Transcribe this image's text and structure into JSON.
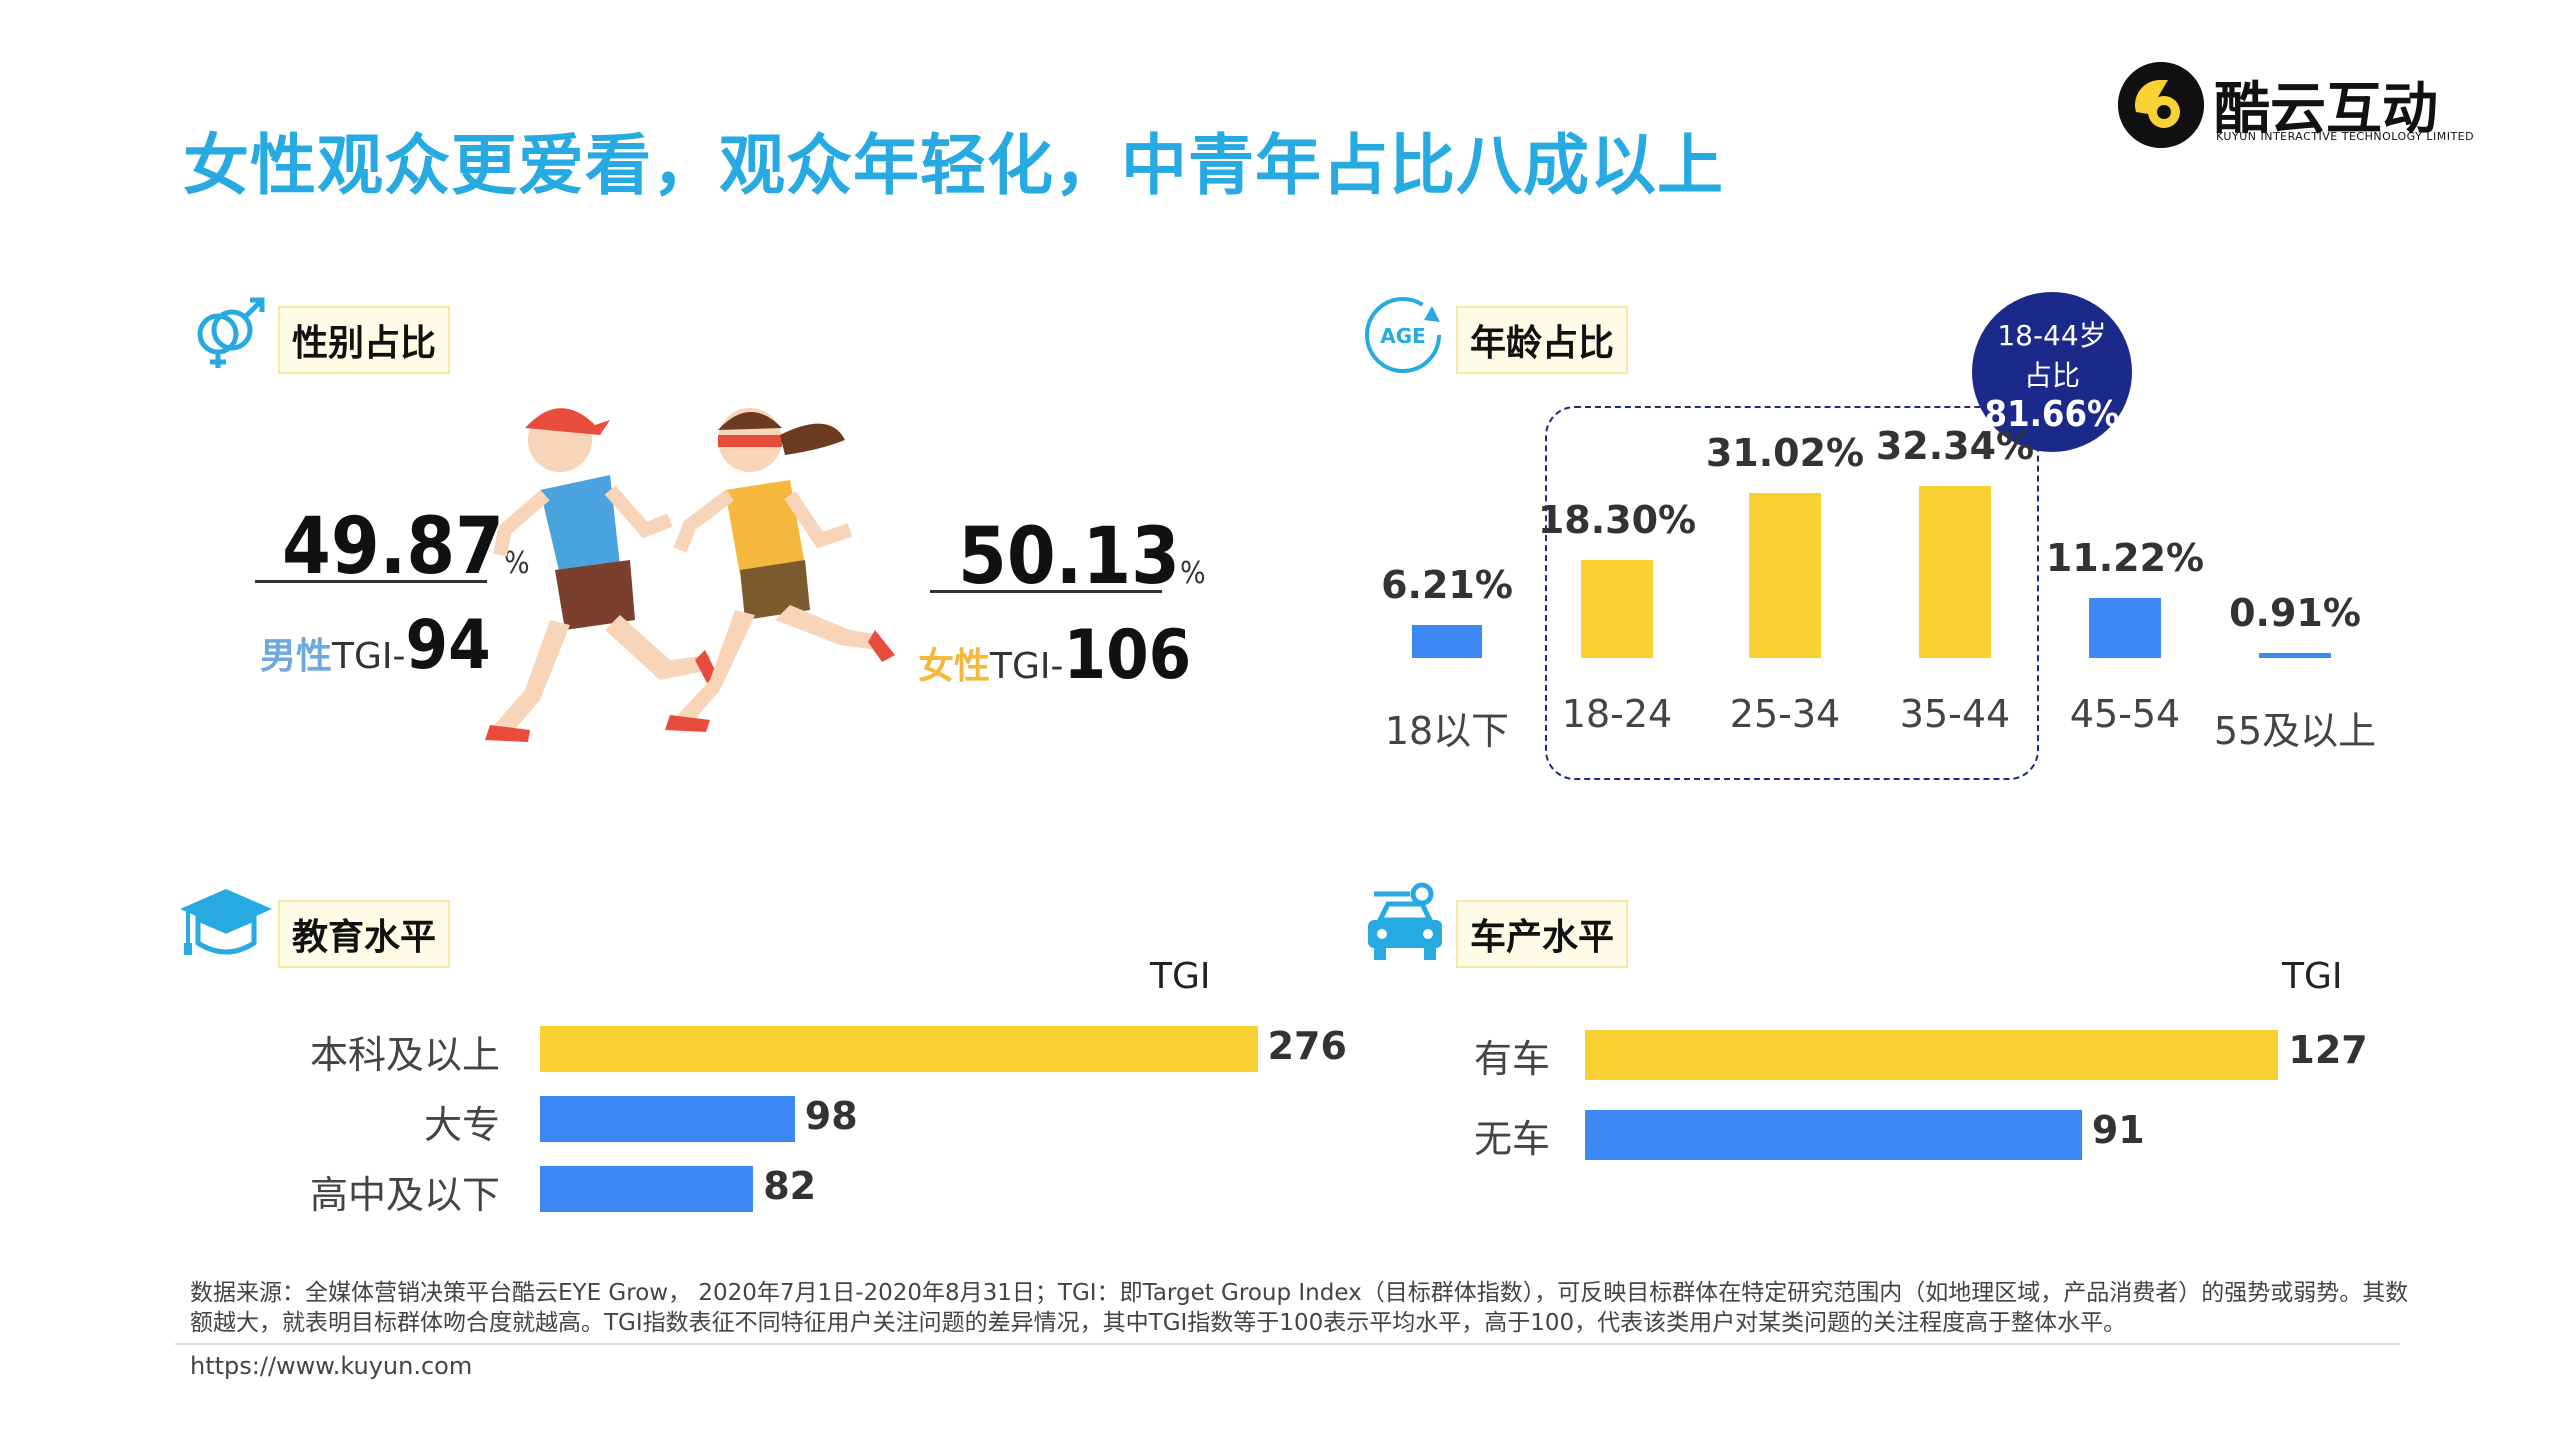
{
  "title": "女性观众更爱看，观众年轻化，中青年占比八成以上",
  "logo": {
    "name": "酷云互动",
    "subtitle": "KUYUN INTERACTIVE TECHNOLOGY LIMITED"
  },
  "sections": {
    "gender": "性别占比",
    "age": "年龄占比",
    "education": "教育水平",
    "car": "车产水平"
  },
  "gender": {
    "male": {
      "pct": "49.87",
      "unit": "%",
      "label": "男性",
      "tgi_prefix": "TGI-",
      "tgi": "94"
    },
    "female": {
      "pct": "50.13",
      "unit": "%",
      "label": "女性",
      "tgi_prefix": "TGI-",
      "tgi": "106"
    }
  },
  "age_badge": {
    "line1": "18-44岁",
    "line2": "占比",
    "value": "81.66%"
  },
  "tgi_label": "TGI",
  "colors": {
    "yellow": "#f9d132",
    "blue": "#3d87f5",
    "title": "#27a9e1",
    "badge": "#1b2a8a",
    "male": "#6fa8dc",
    "female": "#f6b83c"
  },
  "chart_data": [
    {
      "type": "bar",
      "categories": [
        "18以下",
        "18-24",
        "25-34",
        "35-44",
        "45-54",
        "55及以上"
      ],
      "values": [
        6.21,
        18.3,
        31.02,
        32.34,
        11.22,
        0.91
      ],
      "labels": [
        "6.21%",
        "18.30%",
        "31.02%",
        "32.34%",
        "11.22%",
        "0.91%"
      ],
      "highlight": [
        false,
        true,
        true,
        true,
        false,
        false
      ]
    },
    {
      "type": "bar",
      "orientation": "horizontal",
      "categories": [
        "本科及以上",
        "大专",
        "高中及以下"
      ],
      "values": [
        276,
        98,
        82
      ],
      "highlight": [
        true,
        false,
        false
      ]
    },
    {
      "type": "bar",
      "orientation": "horizontal",
      "categories": [
        "有车",
        "无车"
      ],
      "values": [
        127,
        91
      ],
      "highlight": [
        true,
        false
      ]
    }
  ],
  "footnote": "数据来源：全媒体营销决策平台酷云EYE Grow， 2020年7月1日-2020年8月31日；TGI：即Target Group Index（目标群体指数），可反映目标群体在特定研究范围内（如地理区域，产品消费者）的强势或弱势。其数额越大，就表明目标群体吻合度就越高。TGI指数表征不同特征用户关注问题的差异情况，其中TGI指数等于100表示平均水平，高于100，代表该类用户对某类问题的关注程度高于整体水平。",
  "url": "https://www.kuyun.com"
}
